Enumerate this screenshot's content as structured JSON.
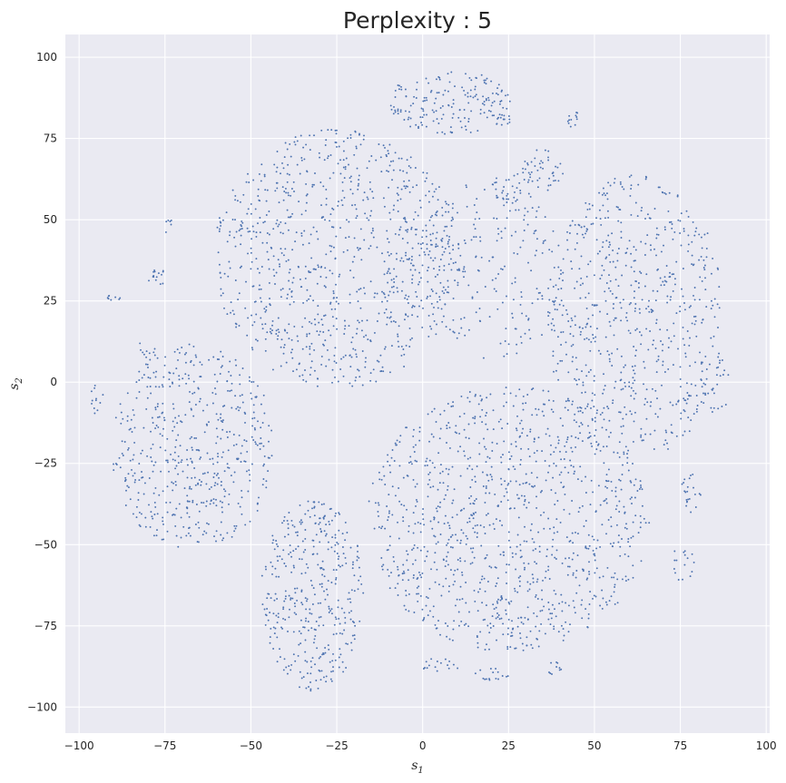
{
  "chart_data": {
    "type": "scatter",
    "title": "Perplexity : 5",
    "xlabel": "s",
    "xlabel_sub": "1",
    "ylabel": "s",
    "ylabel_sub": "2",
    "xlim": [
      -104,
      101
    ],
    "ylim": [
      -108,
      107
    ],
    "xticks": [
      -100,
      -75,
      -50,
      -25,
      0,
      25,
      50,
      75,
      100
    ],
    "yticks": [
      -100,
      -75,
      -50,
      -25,
      0,
      25,
      50,
      75,
      100
    ],
    "xtick_labels": [
      "−100",
      "−75",
      "−50",
      "−25",
      "0",
      "25",
      "50",
      "75",
      "100"
    ],
    "ytick_labels": [
      "−100",
      "−75",
      "−50",
      "−25",
      "0",
      "25",
      "50",
      "75",
      "100"
    ],
    "grid": true,
    "marker_color": "#4C72B0",
    "background": "#EAEAF2",
    "clusters": [
      {
        "center": [
          -25,
          38
        ],
        "radius": [
          36,
          40
        ],
        "count": 900
      },
      {
        "center": [
          -67,
          -20
        ],
        "radius": [
          24,
          32
        ],
        "count": 520
      },
      {
        "center": [
          -32,
          -65
        ],
        "radius": [
          15,
          30
        ],
        "count": 380
      },
      {
        "center": [
          25,
          -42
        ],
        "radius": [
          41,
          41
        ],
        "count": 1050
      },
      {
        "center": [
          62,
          20
        ],
        "radius": [
          26,
          44
        ],
        "count": 650
      },
      {
        "center": [
          8,
          86
        ],
        "radius": [
          18,
          10
        ],
        "count": 170
      },
      {
        "center": [
          20,
          35
        ],
        "radius": [
          22,
          28
        ],
        "count": 220
      },
      {
        "center": [
          35,
          65
        ],
        "radius": [
          6,
          7
        ],
        "count": 45
      },
      {
        "center": [
          25,
          60
        ],
        "radius": [
          5,
          5
        ],
        "count": 25
      },
      {
        "center": [
          44,
          81
        ],
        "radius": [
          2,
          3
        ],
        "count": 12
      },
      {
        "center": [
          22,
          81
        ],
        "radius": [
          4,
          2
        ],
        "count": 14
      },
      {
        "center": [
          -90,
          26
        ],
        "radius": [
          2,
          1
        ],
        "count": 8
      },
      {
        "center": [
          -95,
          -5
        ],
        "radius": [
          2,
          5
        ],
        "count": 12
      },
      {
        "center": [
          -77,
          32
        ],
        "radius": [
          3,
          3
        ],
        "count": 15
      },
      {
        "center": [
          -74,
          48
        ],
        "radius": [
          2,
          2
        ],
        "count": 6
      },
      {
        "center": [
          -80,
          10
        ],
        "radius": [
          3,
          4
        ],
        "count": 10
      },
      {
        "center": [
          85,
          0
        ],
        "radius": [
          5,
          10
        ],
        "count": 26
      },
      {
        "center": [
          78,
          -35
        ],
        "radius": [
          3,
          7
        ],
        "count": 22
      },
      {
        "center": [
          76,
          -55
        ],
        "radius": [
          3,
          7
        ],
        "count": 16
      },
      {
        "center": [
          5,
          -87
        ],
        "radius": [
          6,
          2
        ],
        "count": 16
      },
      {
        "center": [
          20,
          -90
        ],
        "radius": [
          5,
          2
        ],
        "count": 16
      },
      {
        "center": [
          38,
          -88
        ],
        "radius": [
          3,
          2
        ],
        "count": 10
      }
    ]
  }
}
